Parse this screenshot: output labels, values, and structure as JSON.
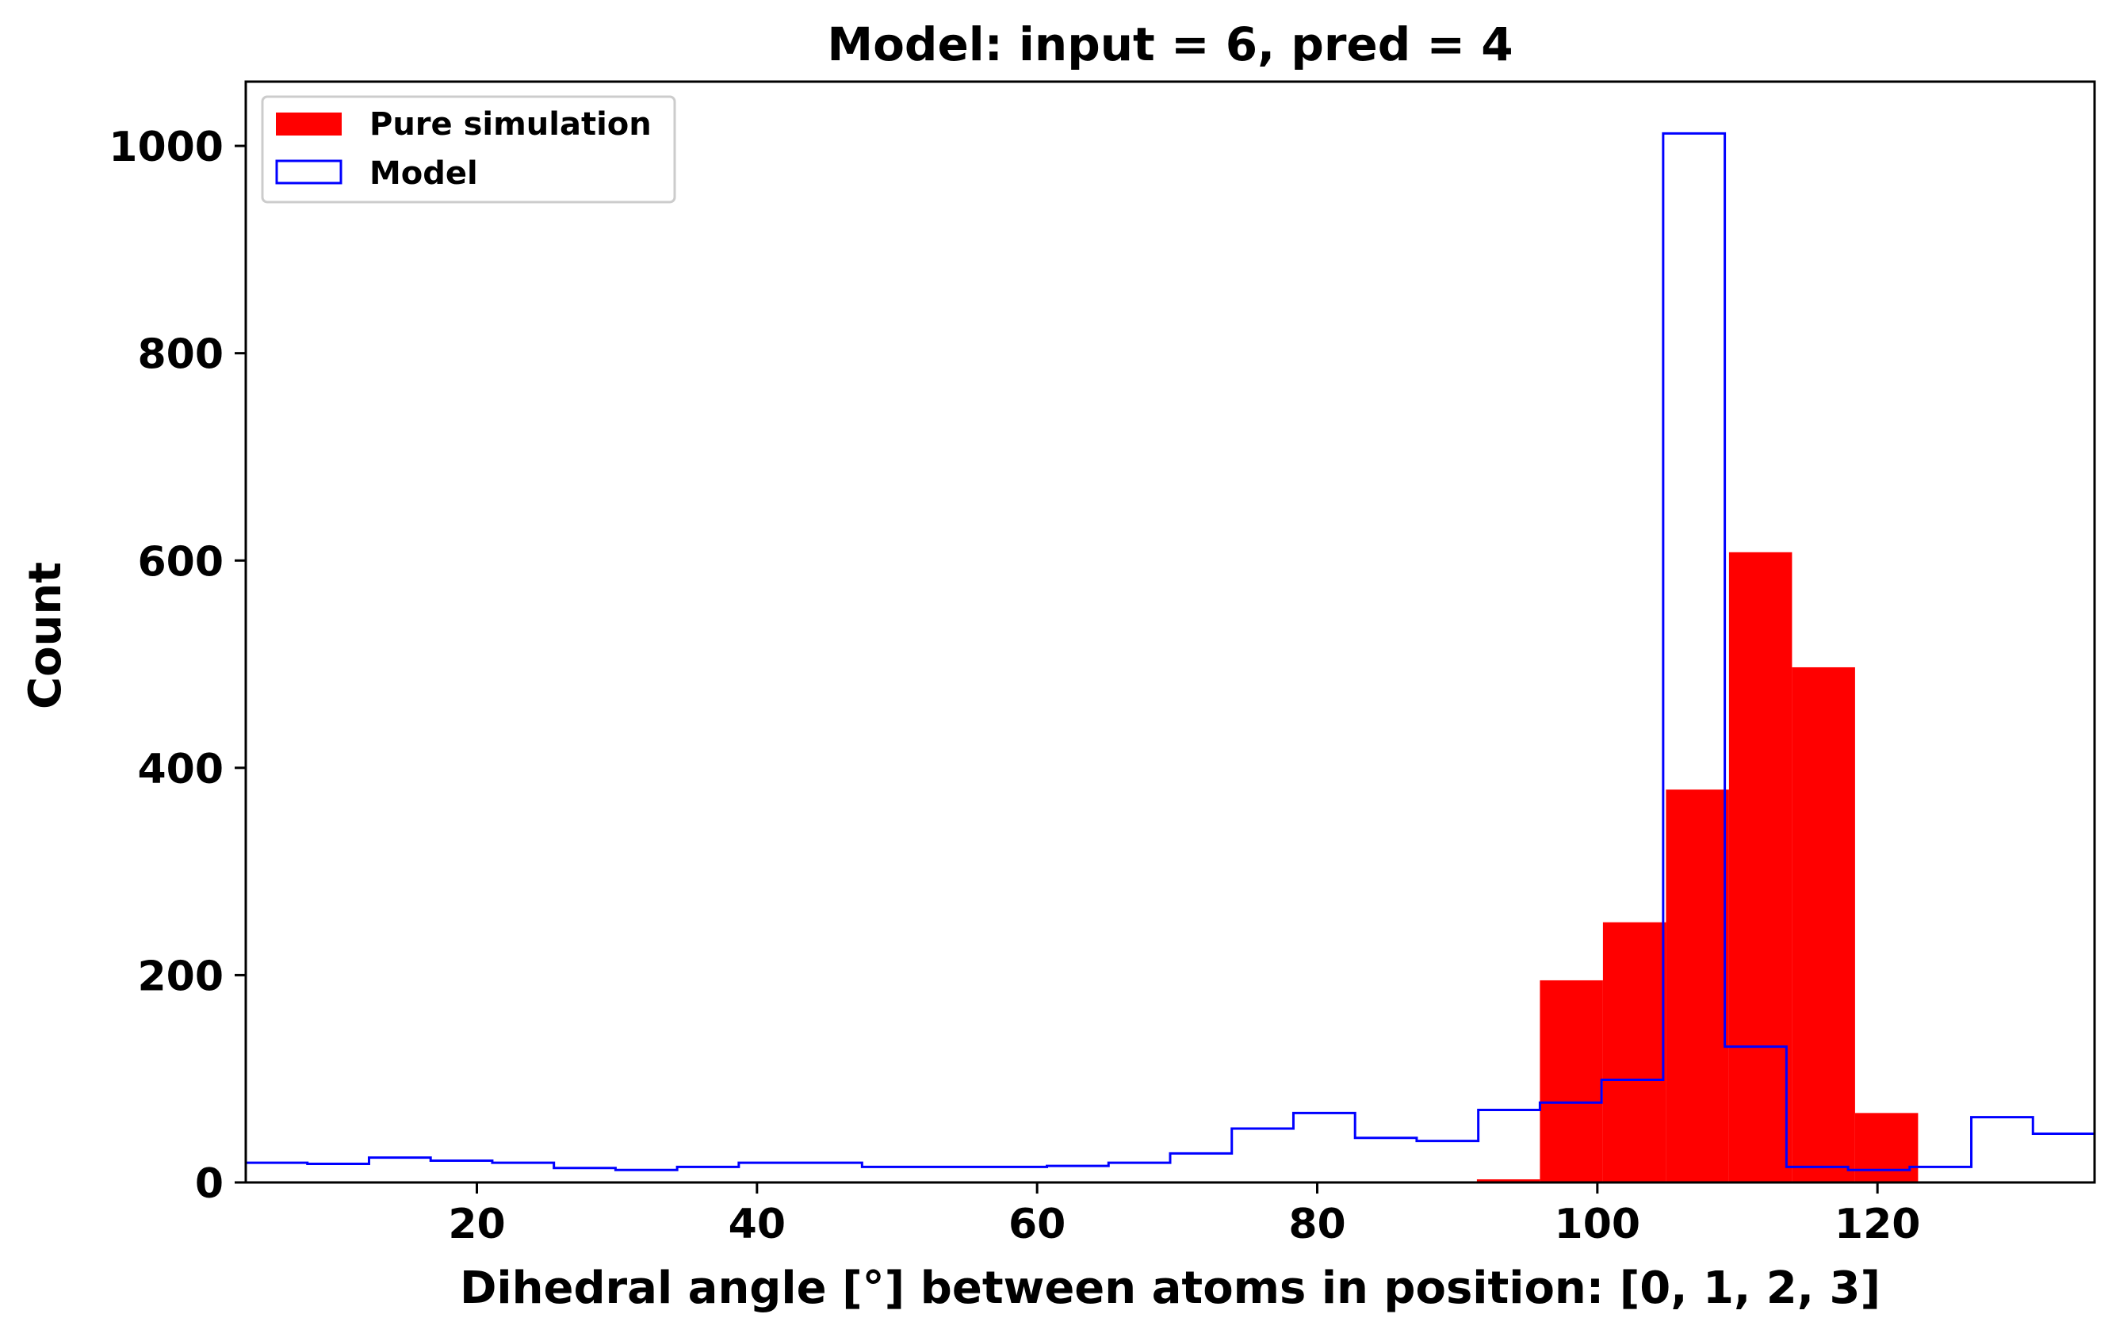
{
  "chart_data": {
    "type": "histogram",
    "title": "Model: input = 6, pred = 4",
    "xlabel": "Dihedral angle [°] between atoms in position: [0, 1, 2, 3]",
    "ylabel": "Count",
    "xlim": [
      3.5,
      135.5
    ],
    "ylim": [
      0,
      1062
    ],
    "xticks": [
      20,
      40,
      60,
      80,
      100,
      120
    ],
    "yticks": [
      0,
      200,
      400,
      600,
      800,
      1000
    ],
    "grid": false,
    "legend_position": "upper-left",
    "series": [
      {
        "name": "Pure simulation",
        "style": "filled",
        "color": "#ff0000",
        "bin_edges": [
          91.4,
          95.9,
          100.4,
          104.9,
          109.4,
          113.9,
          118.4,
          122.9
        ],
        "counts": [
          3,
          195,
          251,
          379,
          608,
          497,
          67
        ]
      },
      {
        "name": "Model",
        "style": "step",
        "color": "#0000ff",
        "bin_edges": [
          3.5,
          7.9,
          12.3,
          16.7,
          21.1,
          25.5,
          29.9,
          34.3,
          38.7,
          43.1,
          47.5,
          51.9,
          56.3,
          60.7,
          65.1,
          69.5,
          73.9,
          78.3,
          82.7,
          87.1,
          91.5,
          95.9,
          100.3,
          104.7,
          109.1,
          113.5,
          117.9,
          122.3,
          126.7,
          131.1,
          135.5
        ],
        "counts": [
          19,
          18,
          24,
          21,
          19,
          14,
          12,
          15,
          19,
          19,
          15,
          15,
          15,
          16,
          19,
          28,
          52,
          67,
          43,
          40,
          70,
          77,
          99,
          1012,
          131,
          15,
          12,
          15,
          63,
          47
        ]
      }
    ]
  }
}
